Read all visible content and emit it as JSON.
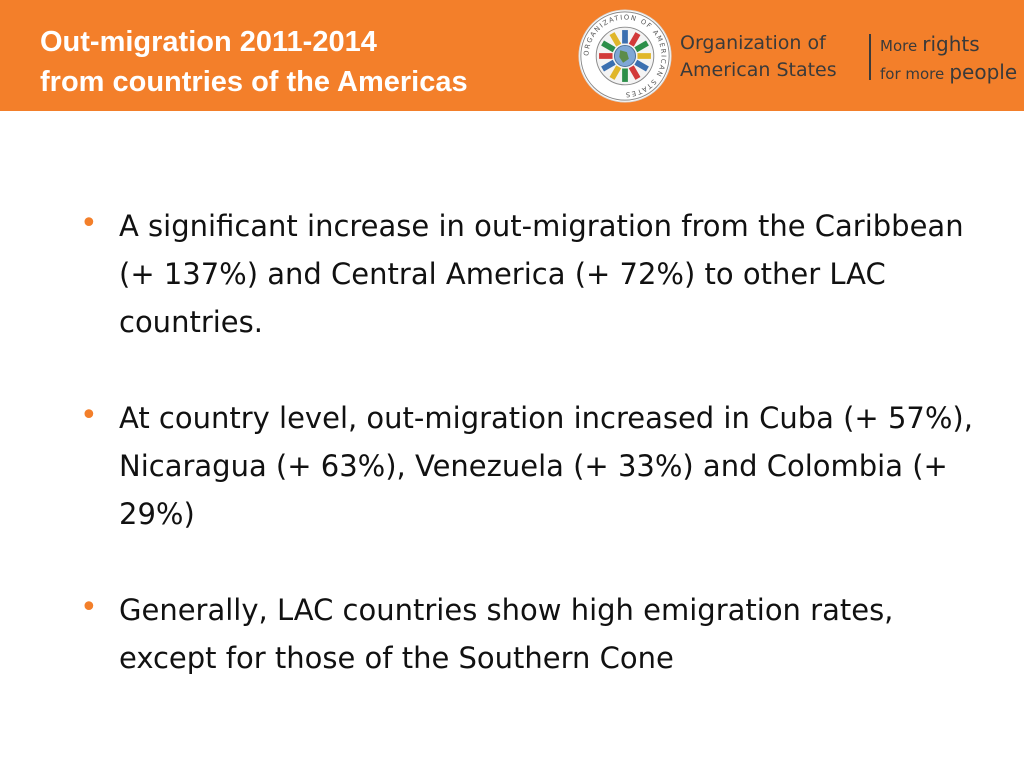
{
  "header": {
    "title_line1": "Out-migration 2011-2014",
    "title_line2": "from countries of the Americas",
    "org_line1": "Organization of",
    "org_line2": "American States",
    "slogan_more1": "More",
    "slogan_rights": "rights",
    "slogan_for_more": "for more",
    "slogan_people": "people",
    "seal_text": "ORGANIZATION OF AMERICAN STATES",
    "accent_color": "#f37f2a"
  },
  "bullets": [
    "A significant increase in out-migration from the Caribbean (+ 137%) and Central America (+ 72%) to other LAC countries.",
    "At  country level, out-migration increased in Cuba (+ 57%), Nicaragua (+ 63%), Venezuela (+ 33%) and Colombia (+ 29%)",
    "Generally, LAC countries show high emigration rates, except for those of the Southern Cone"
  ],
  "bullet_symbol": "•"
}
